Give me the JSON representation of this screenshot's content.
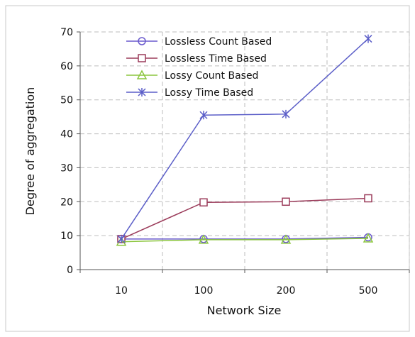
{
  "chart_data": {
    "type": "line",
    "title": "",
    "xlabel": "Network Size",
    "ylabel": "Degree of aggregation",
    "categories": [
      "10",
      "100",
      "200",
      "500"
    ],
    "ylim": [
      0,
      70
    ],
    "yticks": [
      0,
      10,
      20,
      30,
      40,
      50,
      60,
      70
    ],
    "grid": true,
    "legend_position": "top-left",
    "series": [
      {
        "name": "Lossless Count Based",
        "values": [
          9.0,
          9.0,
          9.0,
          9.5
        ],
        "color": "#6A5ACD",
        "marker": "circle"
      },
      {
        "name": "Lossless Time Based",
        "values": [
          9.0,
          19.8,
          20.0,
          21.0
        ],
        "color": "#9B3B5A",
        "marker": "square"
      },
      {
        "name": "Lossy Count Based",
        "values": [
          8.2,
          8.8,
          8.8,
          9.2
        ],
        "color": "#8CC63F",
        "marker": "triangle"
      },
      {
        "name": "Lossy Time Based",
        "values": [
          9.0,
          45.5,
          45.8,
          68.0
        ],
        "color": "#5B5EC8",
        "marker": "star"
      }
    ]
  }
}
